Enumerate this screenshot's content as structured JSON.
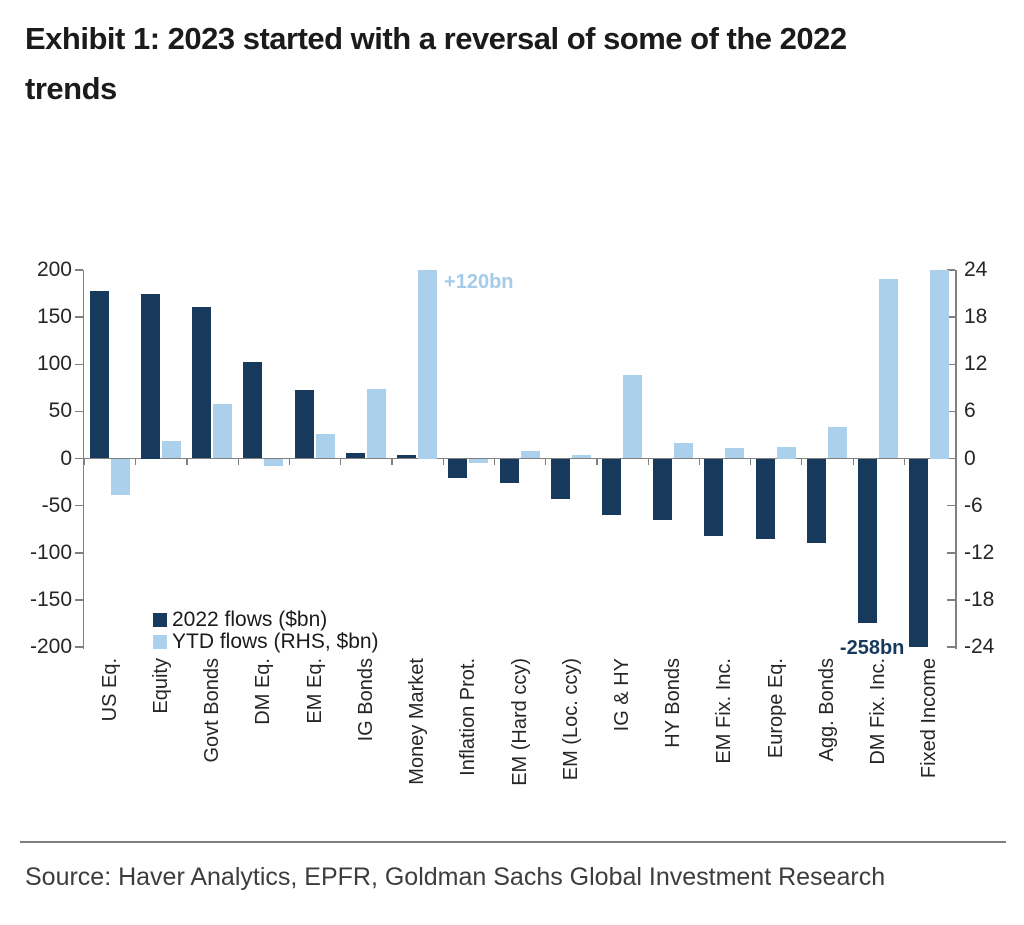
{
  "page": {
    "title_lines": [
      "Exhibit 1: 2023 started with a reversal of some of the 2022",
      "trends"
    ],
    "source": "Source: Haver Analytics, EPFR, Goldman Sachs Global Investment Research"
  },
  "chart_data": {
    "type": "bar",
    "title": "Exhibit 1: 2023 started with a reversal of some of the 2022 trends",
    "categories": [
      "US Eq.",
      "Equity",
      "Govt Bonds",
      "DM Eq.",
      "EM Eq.",
      "IG Bonds",
      "Money Market",
      "Inflation Prot.",
      "EM (Hard ccy)",
      "EM (Loc. ccy)",
      "IG & HY",
      "HY Bonds",
      "EM Fix. Inc.",
      "Europe Eq.",
      "Agg. Bonds",
      "DM Fix. Inc.",
      "Fixed Income"
    ],
    "series": [
      {
        "name": "2022 flows ($bn)",
        "axis": "left",
        "color": "#17395C",
        "values": [
          178,
          175,
          161,
          102,
          73,
          6,
          4,
          -21,
          -26,
          -43,
          -60,
          -65,
          -82,
          -85,
          -90,
          -175,
          -258
        ]
      },
      {
        "name": "YTD flows (RHS, $bn)",
        "axis": "right",
        "color": "#ABD0EC",
        "values": [
          -4.6,
          2.2,
          6.9,
          -1.0,
          3.1,
          8.8,
          120,
          -0.6,
          0.9,
          0.5,
          10.6,
          2.0,
          1.3,
          1.5,
          4.0,
          22.8,
          24
        ]
      }
    ],
    "left_axis": {
      "min": -200,
      "max": 200,
      "step": 50,
      "tick_labels": [
        "200",
        "150",
        "100",
        "50",
        "0",
        "-50",
        "-100",
        "-150",
        "-200"
      ]
    },
    "right_axis": {
      "min": -24,
      "max": 24,
      "step": 6,
      "tick_labels": [
        "24",
        "18",
        "12",
        "6",
        "0",
        "-6",
        "-12",
        "-18",
        "-24"
      ]
    },
    "annotations": [
      {
        "text": "+120bn",
        "category": "Money Market",
        "series": "YTD flows (RHS, $bn)",
        "color": "#A4CBE8",
        "placement": "right-of-bar-top",
        "note": "bar truncated at right-axis max"
      },
      {
        "text": "-258bn",
        "category": "Fixed Income",
        "series": "2022 flows ($bn)",
        "color": "#17395C",
        "placement": "left-of-bar-bottom",
        "note": "bar truncated at left-axis min"
      }
    ],
    "legend_position": "inside-bottom-left",
    "grid": false,
    "axis_color": "#808080"
  }
}
